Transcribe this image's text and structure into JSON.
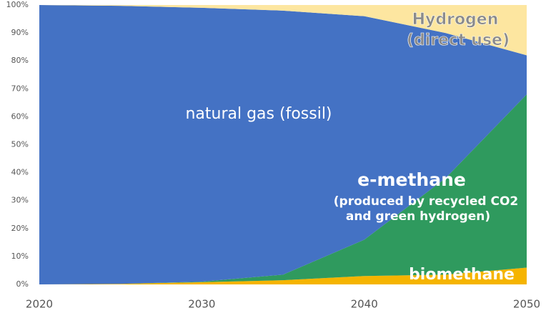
{
  "chart_data": {
    "type": "area",
    "x": [
      2020,
      2025,
      2030,
      2035,
      2040,
      2045,
      2050
    ],
    "series": [
      {
        "name": "biomethane",
        "color": "#f5b400",
        "values": [
          0,
          0.2,
          0.8,
          1.5,
          3,
          3.5,
          6
        ]
      },
      {
        "name": "e-methane",
        "color": "#2f9a5e",
        "values": [
          0,
          0,
          0.2,
          2,
          13,
          34.5,
          62
        ]
      },
      {
        "name": "natural gas (fossil)",
        "color": "#4472c4",
        "values": [
          100,
          99.5,
          98,
          94.5,
          80,
          52,
          14
        ]
      },
      {
        "name": "Hydrogen",
        "color": "#fde6a0",
        "values": [
          0,
          0.3,
          1,
          2,
          4,
          10,
          18
        ]
      }
    ],
    "annotations": [
      "(direct use)",
      "(produced by recycled CO2",
      "and green hydrogen)"
    ],
    "xlim": [
      2020,
      2050
    ],
    "ylim": [
      0,
      100
    ],
    "xticks": [
      2020,
      2030,
      2040,
      2050
    ],
    "yticks": [
      {
        "value": 0,
        "label": "0%"
      },
      {
        "value": 10,
        "label": "10%"
      },
      {
        "value": 20,
        "label": "20%"
      },
      {
        "value": 30,
        "label": "30%"
      },
      {
        "value": 40,
        "label": "40%"
      },
      {
        "value": 50,
        "label": "50%"
      },
      {
        "value": 60,
        "label": "60%"
      },
      {
        "value": 70,
        "label": "70%"
      },
      {
        "value": 80,
        "label": "80%"
      },
      {
        "value": 90,
        "label": "90%"
      },
      {
        "value": 100,
        "label": "100%"
      }
    ]
  }
}
